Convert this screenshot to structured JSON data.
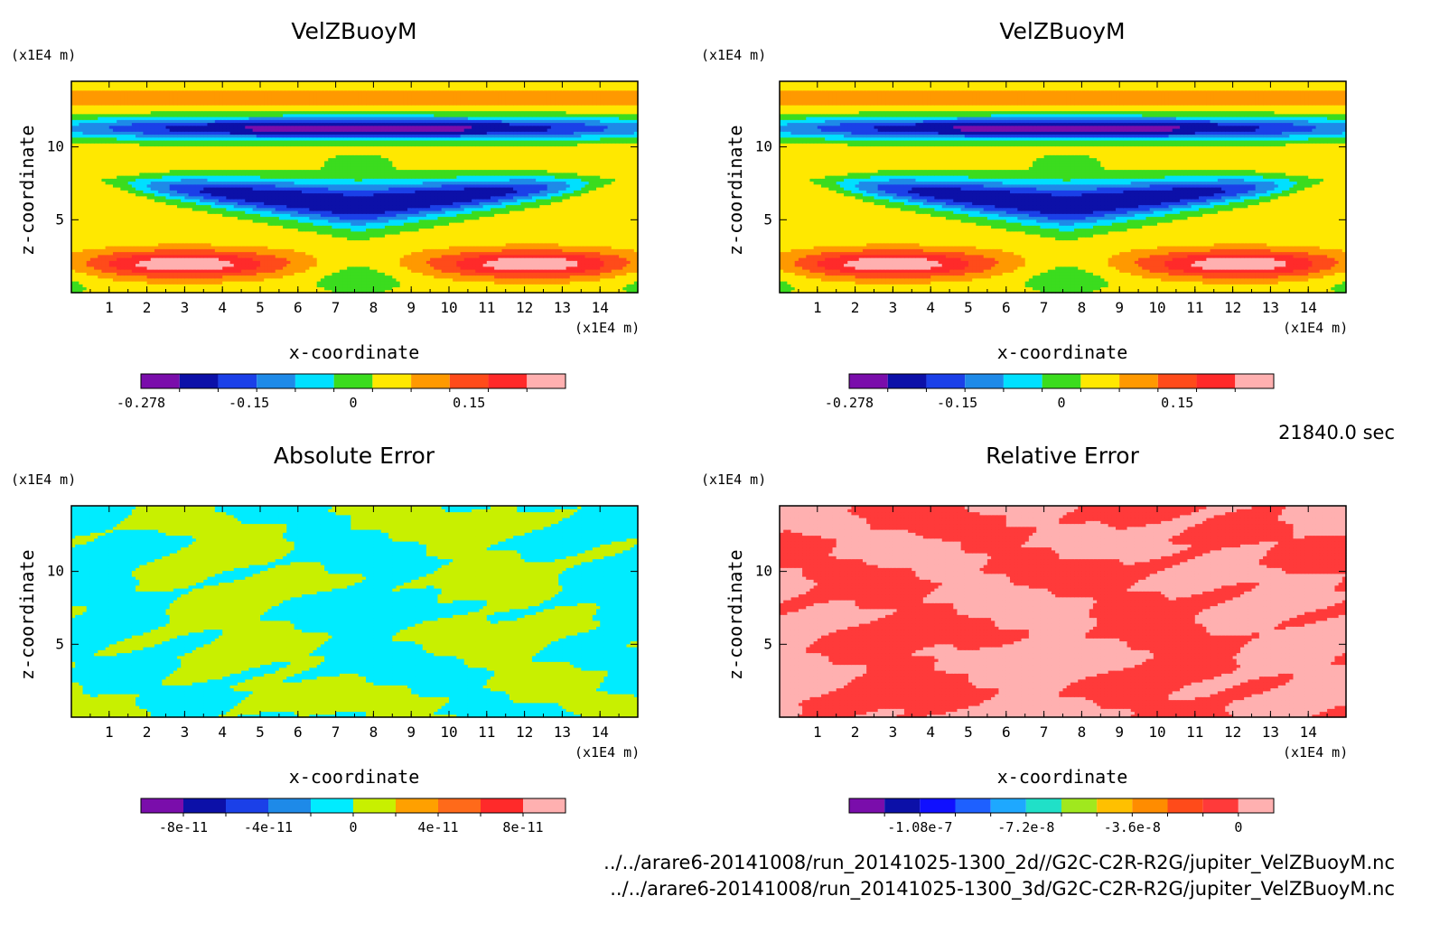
{
  "chart_data": [
    {
      "type": "heatmap",
      "title": "VelZBuoyM",
      "xlabel": "x-coordinate",
      "ylabel": "z-coordinate",
      "x_unit": "(x1E4 m)",
      "y_unit": "(x1E4 m)",
      "xlim": [
        0,
        15
      ],
      "ylim": [
        0,
        14.5
      ],
      "x_ticks": [
        "1",
        "2",
        "3",
        "4",
        "5",
        "6",
        "7",
        "8",
        "9",
        "10",
        "11",
        "12",
        "13",
        "14"
      ],
      "y_ticks": [
        "5",
        "10"
      ],
      "colorbar": {
        "colors": [
          "#7a0dab",
          "#0c10a8",
          "#1b40e8",
          "#1e8ae8",
          "#00e0ff",
          "#3bdc1e",
          "#ffe800",
          "#ff9900",
          "#ff4b1a",
          "#ff2a2a",
          "#ffb0b0"
        ],
        "tick_labels": [
          "-0.278",
          "-0.15",
          "0",
          "0.15"
        ],
        "tick_bins": [
          0,
          2.8,
          5.5,
          8.5
        ]
      },
      "field": "velz"
    },
    {
      "type": "heatmap",
      "title": "VelZBuoyM",
      "xlabel": "x-coordinate",
      "ylabel": "z-coordinate",
      "x_unit": "(x1E4 m)",
      "y_unit": "(x1E4 m)",
      "xlim": [
        0,
        15
      ],
      "ylim": [
        0,
        14.5
      ],
      "x_ticks": [
        "1",
        "2",
        "3",
        "4",
        "5",
        "6",
        "7",
        "8",
        "9",
        "10",
        "11",
        "12",
        "13",
        "14"
      ],
      "y_ticks": [
        "5",
        "10"
      ],
      "colorbar": {
        "colors": [
          "#7a0dab",
          "#0c10a8",
          "#1b40e8",
          "#1e8ae8",
          "#00e0ff",
          "#3bdc1e",
          "#ffe800",
          "#ff9900",
          "#ff4b1a",
          "#ff2a2a",
          "#ffb0b0"
        ],
        "tick_labels": [
          "-0.278",
          "-0.15",
          "0",
          "0.15"
        ],
        "tick_bins": [
          0,
          2.8,
          5.5,
          8.5
        ]
      },
      "field": "velz"
    },
    {
      "type": "heatmap",
      "title": "Absolute Error",
      "xlabel": "x-coordinate",
      "ylabel": "z-coordinate",
      "x_unit": "(x1E4 m)",
      "y_unit": "(x1E4 m)",
      "xlim": [
        0,
        15
      ],
      "ylim": [
        0,
        14.5
      ],
      "x_ticks": [
        "1",
        "2",
        "3",
        "4",
        "5",
        "6",
        "7",
        "8",
        "9",
        "10",
        "11",
        "12",
        "13",
        "14"
      ],
      "y_ticks": [
        "5",
        "10"
      ],
      "colorbar": {
        "colors": [
          "#7a0dab",
          "#0c10a8",
          "#1b40e8",
          "#1e8ae8",
          "#00ecff",
          "#c8f000",
          "#ffa000",
          "#ff6a1a",
          "#ff2a2a",
          "#ffb0b0"
        ],
        "tick_labels": [
          "-8e-11",
          "-4e-11",
          "0",
          "4e-11",
          "8e-11"
        ],
        "tick_bins": [
          1,
          3,
          5,
          7,
          9
        ]
      },
      "field": "abs",
      "colors_present": [
        "#00ecff",
        "#c8f000"
      ]
    },
    {
      "type": "heatmap",
      "title": "Relative Error",
      "xlabel": "x-coordinate",
      "ylabel": "z-coordinate",
      "x_unit": "(x1E4 m)",
      "y_unit": "(x1E4 m)",
      "xlim": [
        0,
        15
      ],
      "ylim": [
        0,
        14.5
      ],
      "x_ticks": [
        "1",
        "2",
        "3",
        "4",
        "5",
        "6",
        "7",
        "8",
        "9",
        "10",
        "11",
        "12",
        "13",
        "14"
      ],
      "y_ticks": [
        "5",
        "10"
      ],
      "colorbar": {
        "colors": [
          "#7a0dab",
          "#0c10a8",
          "#1010ff",
          "#1e60ff",
          "#1ea8ff",
          "#20e0c8",
          "#a0e81e",
          "#ffc000",
          "#ff8c00",
          "#ff4b1a",
          "#ff3a3a",
          "#ffb0b0"
        ],
        "tick_labels": [
          "-1.08e-7",
          "-7.2e-8",
          "-3.6e-8",
          "0"
        ],
        "tick_bins": [
          2,
          5,
          8,
          11
        ]
      },
      "field": "rel",
      "colors_present": [
        "#ff3a3a",
        "#ffb0b0"
      ]
    }
  ],
  "time_label": "21840.0 sec",
  "file_paths": [
    "../../arare6-20141008/run_20141025-1300_2d//G2C-C2R-R2G/jupiter_VelZBuoyM.nc",
    "../../arare6-20141008/run_20141025-1300_3d/G2C-C2R-R2G/jupiter_VelZBuoyM.nc"
  ]
}
